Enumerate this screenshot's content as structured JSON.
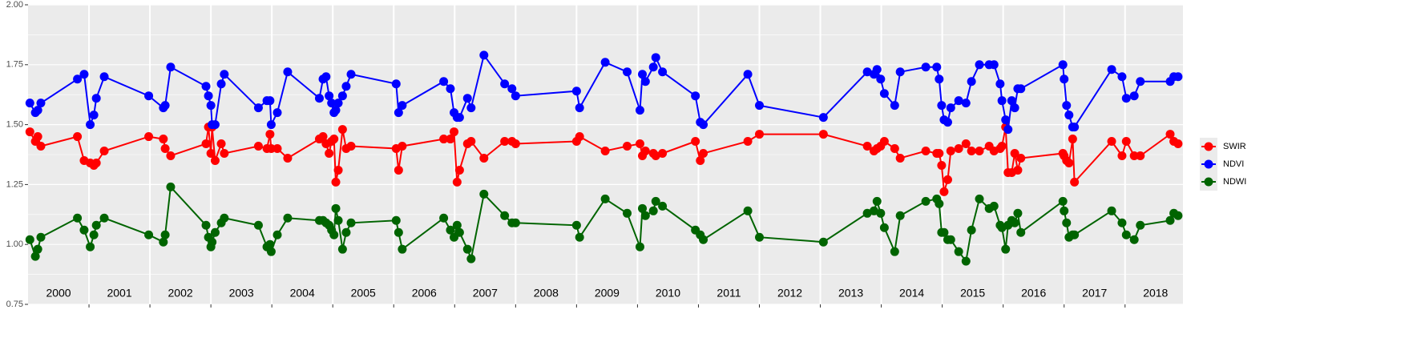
{
  "chart_data": {
    "type": "line",
    "x": [
      2000.03,
      2000.12,
      2000.16,
      2000.21,
      2000.81,
      2000.92,
      2001.02,
      2001.08,
      2001.12,
      2001.25,
      2001.98,
      2002.22,
      2002.25,
      2002.34,
      2002.92,
      2002.96,
      2003.0,
      2003.02,
      2003.07,
      2003.17,
      2003.22,
      2003.78,
      2003.92,
      2003.97,
      2003.99,
      2004.09,
      2004.26,
      2004.78,
      2004.84,
      2004.89,
      2004.94,
      2004.98,
      2005.02,
      2005.05,
      2005.09,
      2005.16,
      2005.22,
      2005.3,
      2006.04,
      2006.08,
      2006.14,
      2006.82,
      2006.93,
      2006.99,
      2007.04,
      2007.08,
      2007.21,
      2007.27,
      2007.48,
      2007.82,
      2007.94,
      2008.0,
      2009.0,
      2009.05,
      2009.47,
      2009.83,
      2010.04,
      2010.08,
      2010.13,
      2010.26,
      2010.3,
      2010.41,
      2010.95,
      2011.03,
      2011.08,
      2011.81,
      2012.0,
      2013.05,
      2013.77,
      2013.88,
      2013.93,
      2013.99,
      2014.05,
      2014.22,
      2014.31,
      2014.73,
      2014.91,
      2014.95,
      2014.99,
      2015.03,
      2015.09,
      2015.14,
      2015.27,
      2015.39,
      2015.48,
      2015.61,
      2015.77,
      2015.85,
      2015.95,
      2015.98,
      2016.04,
      2016.08,
      2016.14,
      2016.19,
      2016.24,
      2016.29,
      2016.98,
      2017.0,
      2017.04,
      2017.08,
      2017.14,
      2017.17,
      2017.78,
      2017.95,
      2018.02,
      2018.15,
      2018.25,
      2018.74,
      2018.8,
      2018.87
    ],
    "series": [
      {
        "name": "SWIR",
        "color": "#ff0000",
        "values": [
          1.47,
          1.43,
          1.45,
          1.41,
          1.45,
          1.35,
          1.34,
          1.33,
          1.34,
          1.39,
          1.45,
          1.44,
          1.4,
          1.37,
          1.42,
          1.49,
          1.38,
          1.49,
          1.35,
          1.42,
          1.38,
          1.41,
          1.4,
          1.46,
          1.4,
          1.4,
          1.36,
          1.44,
          1.45,
          1.42,
          1.38,
          1.43,
          1.44,
          1.26,
          1.31,
          1.48,
          1.4,
          1.41,
          1.4,
          1.31,
          1.41,
          1.44,
          1.44,
          1.47,
          1.26,
          1.31,
          1.42,
          1.43,
          1.36,
          1.43,
          1.43,
          1.42,
          1.43,
          1.45,
          1.39,
          1.41,
          1.42,
          1.37,
          1.39,
          1.38,
          1.37,
          1.38,
          1.43,
          1.35,
          1.38,
          1.43,
          1.46,
          1.46,
          1.41,
          1.39,
          1.4,
          1.41,
          1.43,
          1.4,
          1.36,
          1.39,
          1.38,
          1.38,
          1.33,
          1.22,
          1.27,
          1.39,
          1.4,
          1.42,
          1.39,
          1.39,
          1.41,
          1.39,
          1.4,
          1.41,
          1.49,
          1.3,
          1.3,
          1.38,
          1.31,
          1.36,
          1.38,
          1.37,
          1.35,
          1.34,
          1.44,
          1.26,
          1.43,
          1.37,
          1.43,
          1.37,
          1.37,
          1.46,
          1.43,
          1.42
        ]
      },
      {
        "name": "NDVI",
        "color": "#0000ff",
        "values": [
          1.59,
          1.55,
          1.56,
          1.59,
          1.69,
          1.71,
          1.5,
          1.54,
          1.61,
          1.7,
          1.62,
          1.57,
          1.58,
          1.74,
          1.66,
          1.62,
          1.58,
          1.5,
          1.5,
          1.67,
          1.71,
          1.57,
          1.6,
          1.6,
          1.5,
          1.55,
          1.72,
          1.61,
          1.69,
          1.7,
          1.62,
          1.59,
          1.55,
          1.56,
          1.59,
          1.62,
          1.66,
          1.71,
          1.67,
          1.55,
          1.58,
          1.68,
          1.65,
          1.55,
          1.53,
          1.53,
          1.61,
          1.57,
          1.79,
          1.67,
          1.65,
          1.62,
          1.64,
          1.57,
          1.76,
          1.72,
          1.56,
          1.71,
          1.68,
          1.74,
          1.78,
          1.72,
          1.62,
          1.51,
          1.5,
          1.71,
          1.58,
          1.53,
          1.72,
          1.71,
          1.73,
          1.69,
          1.63,
          1.58,
          1.72,
          1.74,
          1.74,
          1.69,
          1.58,
          1.52,
          1.51,
          1.57,
          1.6,
          1.59,
          1.68,
          1.75,
          1.75,
          1.75,
          1.67,
          1.6,
          1.52,
          1.48,
          1.6,
          1.57,
          1.65,
          1.65,
          1.75,
          1.69,
          1.58,
          1.54,
          1.49,
          1.49,
          1.73,
          1.7,
          1.61,
          1.62,
          1.68,
          1.68,
          1.7,
          1.7
        ]
      },
      {
        "name": "NDWI",
        "color": "#006400",
        "values": [
          1.02,
          0.95,
          0.98,
          1.03,
          1.11,
          1.06,
          0.99,
          1.04,
          1.08,
          1.11,
          1.04,
          1.01,
          1.04,
          1.24,
          1.08,
          1.03,
          0.99,
          1.01,
          1.05,
          1.09,
          1.11,
          1.08,
          0.99,
          1.0,
          0.97,
          1.04,
          1.11,
          1.1,
          1.1,
          1.09,
          1.08,
          1.06,
          1.04,
          1.15,
          1.1,
          0.98,
          1.05,
          1.09,
          1.1,
          1.05,
          0.98,
          1.11,
          1.06,
          1.03,
          1.08,
          1.05,
          0.98,
          0.94,
          1.21,
          1.12,
          1.09,
          1.09,
          1.08,
          1.03,
          1.19,
          1.13,
          0.99,
          1.15,
          1.12,
          1.14,
          1.18,
          1.16,
          1.06,
          1.04,
          1.02,
          1.14,
          1.03,
          1.01,
          1.13,
          1.14,
          1.18,
          1.13,
          1.07,
          0.97,
          1.12,
          1.18,
          1.19,
          1.17,
          1.05,
          1.05,
          1.02,
          1.02,
          0.97,
          0.93,
          1.06,
          1.19,
          1.15,
          1.16,
          1.08,
          1.07,
          0.98,
          1.08,
          1.1,
          1.09,
          1.13,
          1.05,
          1.18,
          1.14,
          1.09,
          1.03,
          1.04,
          1.04,
          1.14,
          1.09,
          1.04,
          1.02,
          1.08,
          1.1,
          1.13,
          1.12
        ]
      }
    ],
    "xlim": [
      2000,
      2018.95
    ],
    "x_boundaries": [
      2001,
      2002,
      2003,
      2004,
      2005,
      2006,
      2007,
      2008,
      2009,
      2010,
      2011,
      2012,
      2013,
      2014,
      2015,
      2016,
      2017,
      2018
    ],
    "year_labels": [
      {
        "value": 2000.5,
        "label": "2000"
      },
      {
        "value": 2001.5,
        "label": "2001"
      },
      {
        "value": 2002.5,
        "label": "2002"
      },
      {
        "value": 2003.5,
        "label": "2003"
      },
      {
        "value": 2004.5,
        "label": "2004"
      },
      {
        "value": 2005.5,
        "label": "2005"
      },
      {
        "value": 2006.5,
        "label": "2006"
      },
      {
        "value": 2007.5,
        "label": "2007"
      },
      {
        "value": 2008.5,
        "label": "2008"
      },
      {
        "value": 2009.5,
        "label": "2009"
      },
      {
        "value": 2010.5,
        "label": "2010"
      },
      {
        "value": 2011.5,
        "label": "2011"
      },
      {
        "value": 2012.5,
        "label": "2012"
      },
      {
        "value": 2013.5,
        "label": "2013"
      },
      {
        "value": 2014.5,
        "label": "2014"
      },
      {
        "value": 2015.5,
        "label": "2015"
      },
      {
        "value": 2016.5,
        "label": "2016"
      },
      {
        "value": 2017.5,
        "label": "2017"
      },
      {
        "value": 2018.5,
        "label": "2018"
      }
    ],
    "ylim": [
      0.75,
      2.0
    ],
    "yticks": [
      0.75,
      {
        "value": 1.0,
        "label": "1.00"
      },
      1.25,
      {
        "value": 1.5,
        "label": "1.50"
      },
      1.75,
      {
        "value": 2.0,
        "label": "2.00"
      }
    ],
    "yminor": [
      0.875,
      1.125,
      1.375,
      1.625,
      1.875
    ],
    "grid": true,
    "legend": "right"
  }
}
